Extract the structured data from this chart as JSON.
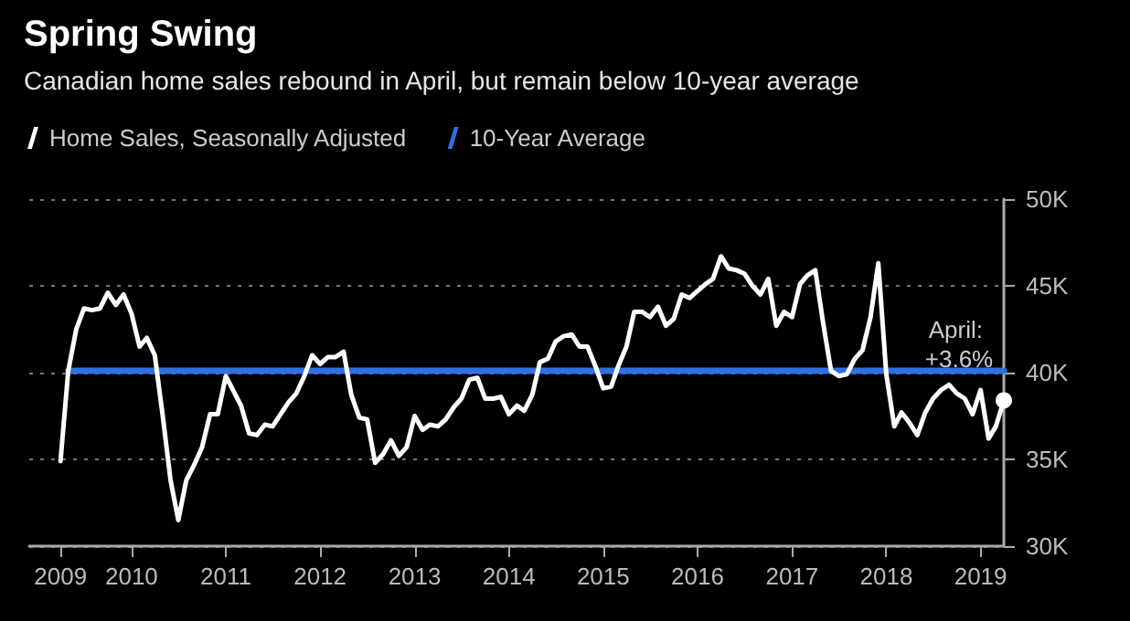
{
  "chart_data": {
    "type": "line",
    "title": "Spring Swing",
    "subtitle": "Canadian home sales rebound in April, but remain below 10-year average",
    "x": [
      "2009-04",
      "2009-05",
      "2009-06",
      "2009-07",
      "2009-08",
      "2009-09",
      "2009-10",
      "2009-11",
      "2009-12",
      "2010-01",
      "2010-02",
      "2010-03",
      "2010-04",
      "2010-05",
      "2010-06",
      "2010-07",
      "2010-08",
      "2010-09",
      "2010-10",
      "2010-11",
      "2010-12",
      "2011-01",
      "2011-02",
      "2011-03",
      "2011-04",
      "2011-05",
      "2011-06",
      "2011-07",
      "2011-08",
      "2011-09",
      "2011-10",
      "2011-11",
      "2011-12",
      "2012-01",
      "2012-02",
      "2012-03",
      "2012-04",
      "2012-05",
      "2012-06",
      "2012-07",
      "2012-08",
      "2012-09",
      "2012-10",
      "2012-11",
      "2012-12",
      "2013-01",
      "2013-02",
      "2013-03",
      "2013-04",
      "2013-05",
      "2013-06",
      "2013-07",
      "2013-08",
      "2013-09",
      "2013-10",
      "2013-11",
      "2013-12",
      "2014-01",
      "2014-02",
      "2014-03",
      "2014-04",
      "2014-05",
      "2014-06",
      "2014-07",
      "2014-08",
      "2014-09",
      "2014-10",
      "2014-11",
      "2014-12",
      "2015-01",
      "2015-02",
      "2015-03",
      "2015-04",
      "2015-05",
      "2015-06",
      "2015-07",
      "2015-08",
      "2015-09",
      "2015-10",
      "2015-11",
      "2015-12",
      "2016-01",
      "2016-02",
      "2016-03",
      "2016-04",
      "2016-05",
      "2016-06",
      "2016-07",
      "2016-08",
      "2016-09",
      "2016-10",
      "2016-11",
      "2016-12",
      "2017-01",
      "2017-02",
      "2017-03",
      "2017-04",
      "2017-05",
      "2017-06",
      "2017-07",
      "2017-08",
      "2017-09",
      "2017-10",
      "2017-11",
      "2017-12",
      "2018-01",
      "2018-02",
      "2018-03",
      "2018-04",
      "2018-05",
      "2018-06",
      "2018-07",
      "2018-08",
      "2018-09",
      "2018-10",
      "2018-11",
      "2018-12",
      "2019-01",
      "2019-02",
      "2019-03",
      "2019-04"
    ],
    "series": [
      {
        "name": "Home Sales, Seasonally Adjusted",
        "color": "#ffffff",
        "values": [
          34900,
          40100,
          42500,
          43700,
          43600,
          43700,
          44600,
          43900,
          44500,
          43400,
          41500,
          42000,
          41000,
          37600,
          33800,
          31500,
          33800,
          34700,
          35700,
          37600,
          37600,
          39800,
          38900,
          38100,
          36500,
          36400,
          37000,
          36900,
          37600,
          38300,
          38800,
          39800,
          41000,
          40500,
          40900,
          40900,
          41200,
          38700,
          37400,
          37300,
          34800,
          35300,
          36100,
          35200,
          35700,
          37500,
          36700,
          37000,
          36900,
          37300,
          38000,
          38500,
          39600,
          39700,
          38500,
          38500,
          38600,
          37600,
          38100,
          37800,
          38700,
          40600,
          40800,
          41800,
          42100,
          42200,
          41500,
          41500,
          40400,
          39100,
          39200,
          40400,
          41500,
          43500,
          43500,
          43200,
          43800,
          42700,
          43100,
          44500,
          44300,
          44700,
          45100,
          45400,
          46700,
          46000,
          45900,
          45700,
          45000,
          44500,
          45400,
          42700,
          43500,
          43200,
          45100,
          45600,
          45900,
          42900,
          40100,
          39800,
          39900,
          40800,
          41300,
          43200,
          46300,
          39900,
          36900,
          37700,
          37100,
          36400,
          37700,
          38500,
          39000,
          39300,
          38800,
          38500,
          37600,
          39000,
          36200,
          36900,
          38400
        ]
      },
      {
        "name": "10-Year Average",
        "color": "#2f6fe0",
        "x": [
          "2009-05",
          "2019-04"
        ],
        "values": [
          40100,
          40100
        ]
      }
    ],
    "annotations": [
      {
        "text": "April: +3.6%",
        "x": "2019-04",
        "y": 38400
      }
    ],
    "xlim": [
      "2008-12",
      "2019-04"
    ],
    "xticks": [
      {
        "value": "2009-04",
        "label": "2009"
      },
      {
        "value": "2010-01",
        "label": "2010"
      },
      {
        "value": "2011-01",
        "label": "2011"
      },
      {
        "value": "2012-01",
        "label": "2012"
      },
      {
        "value": "2013-01",
        "label": "2013"
      },
      {
        "value": "2014-01",
        "label": "2014"
      },
      {
        "value": "2015-01",
        "label": "2015"
      },
      {
        "value": "2016-01",
        "label": "2016"
      },
      {
        "value": "2017-01",
        "label": "2017"
      },
      {
        "value": "2018-01",
        "label": "2018"
      },
      {
        "value": "2019-01",
        "label": "2019"
      }
    ],
    "ylim": [
      30000,
      50000
    ],
    "yticks": [
      {
        "value": 30000,
        "label": "30K"
      },
      {
        "value": 35000,
        "label": "35K"
      },
      {
        "value": 40000,
        "label": "40K"
      },
      {
        "value": 45000,
        "label": "45K"
      },
      {
        "value": 50000,
        "label": "50K"
      }
    ],
    "grid": "y",
    "legend": "top left",
    "marker": "none",
    "line_style": "solid"
  }
}
